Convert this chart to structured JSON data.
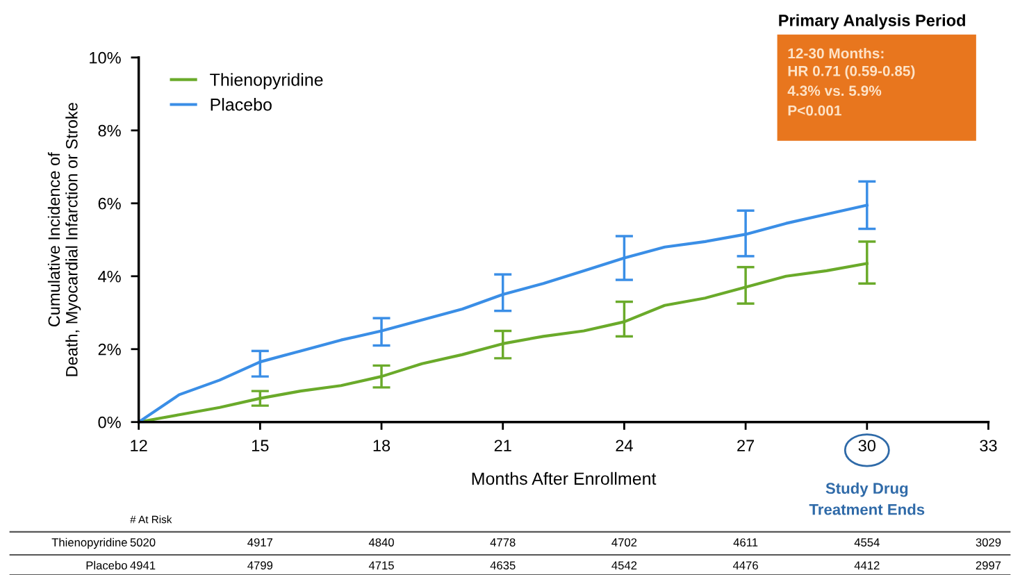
{
  "chart_data": {
    "type": "line",
    "xlabel": "Months After Enrollment",
    "ylabel": "Cumulative Incidence of\nDeath, Myocardial Infarction or Stroke",
    "x": [
      12,
      13,
      14,
      15,
      16,
      17,
      18,
      19,
      20,
      21,
      22,
      23,
      24,
      25,
      26,
      27,
      28,
      29,
      30
    ],
    "series": [
      {
        "name": "Thienopyridine",
        "color": "#6aaa2a",
        "values": [
          0,
          0.2,
          0.4,
          0.65,
          0.85,
          1.0,
          1.25,
          1.6,
          1.85,
          2.15,
          2.35,
          2.5,
          2.75,
          3.2,
          3.4,
          3.7,
          4.0,
          4.15,
          4.35
        ],
        "errors": [
          null,
          null,
          null,
          [
            0.45,
            0.85
          ],
          null,
          null,
          [
            0.95,
            1.55
          ],
          null,
          null,
          [
            1.75,
            2.5
          ],
          null,
          null,
          [
            2.35,
            3.3
          ],
          null,
          null,
          [
            3.25,
            4.25
          ],
          null,
          null,
          [
            3.8,
            4.95
          ]
        ]
      },
      {
        "name": "Placebo",
        "color": "#3a8ee6",
        "values": [
          0,
          0.75,
          1.15,
          1.65,
          1.95,
          2.25,
          2.5,
          2.8,
          3.1,
          3.5,
          3.8,
          4.15,
          4.5,
          4.8,
          4.95,
          5.15,
          5.45,
          5.7,
          5.95
        ],
        "errors": [
          null,
          null,
          null,
          [
            1.25,
            1.95
          ],
          null,
          null,
          [
            2.1,
            2.85
          ],
          null,
          null,
          [
            3.05,
            4.05
          ],
          null,
          null,
          [
            3.9,
            5.1
          ],
          null,
          null,
          [
            4.55,
            5.8
          ],
          null,
          null,
          [
            5.3,
            6.6
          ]
        ]
      }
    ],
    "xlim": [
      12,
      33
    ],
    "xticks": [
      12,
      15,
      18,
      21,
      24,
      27,
      30,
      33
    ],
    "ylim": [
      0,
      10
    ],
    "yticks": [
      {
        "value": 0,
        "label": "0%"
      },
      {
        "value": 2,
        "label": "2%"
      },
      {
        "value": 4,
        "label": "4%"
      },
      {
        "value": 6,
        "label": "6%"
      },
      {
        "value": 8,
        "label": "8%"
      },
      {
        "value": 10,
        "label": "10%"
      }
    ],
    "legend": "top left",
    "grid": false,
    "marker": "none",
    "line_style": "solid",
    "annotations": [
      "Primary Analysis Period",
      "12-30 Months:",
      "HR 0.71 (0.59-0.85)\n4.3% vs. 5.9%\nP<0.001",
      "Study Drug\nTreatment Ends",
      "# At Risk",
      "Thienopyridine",
      "5020",
      "4917",
      "4840",
      "4778",
      "4702",
      "4611",
      "4554",
      "3029",
      "Placebo",
      "4941",
      "4799",
      "4715",
      "4635",
      "4542",
      "4476",
      "4412",
      "2997"
    ]
  }
}
